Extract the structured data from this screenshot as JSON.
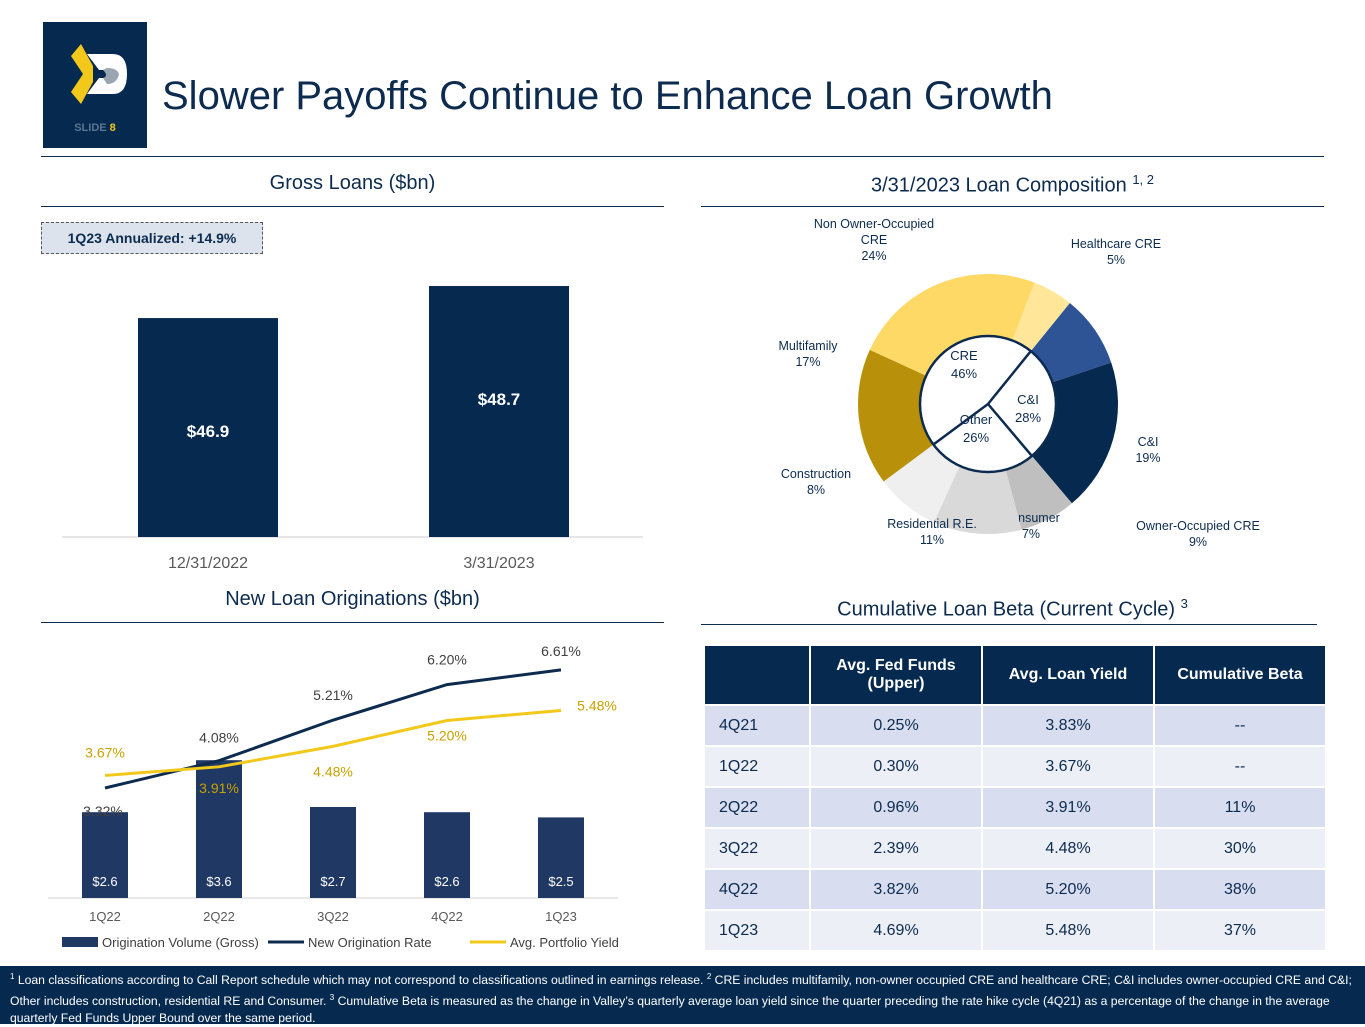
{
  "header": {
    "title": "Slower Payoffs Continue to Enhance Loan Growth",
    "slide_label": "SLIDE",
    "slide_number": "8"
  },
  "colors": {
    "navy": "#062a4f",
    "gold": "#f2c81a",
    "yellow": "#ffd966"
  },
  "gross": {
    "title": "Gross Loans ($bn)",
    "callout": "1Q23 Annualized: +14.9%"
  },
  "composition": {
    "title": "3/31/2023 Loan Composition",
    "sup": "1, 2"
  },
  "originations": {
    "title": "New Loan Originations ($bn)"
  },
  "beta": {
    "title": "Cumulative Loan Beta (Current Cycle)",
    "sup": "3",
    "headers": [
      "",
      "Avg. Fed Funds (Upper)",
      "Avg. Loan Yield",
      "Cumulative Beta"
    ],
    "rows": [
      [
        "4Q21",
        "0.25%",
        "3.83%",
        "--"
      ],
      [
        "1Q22",
        "0.30%",
        "3.67%",
        "--"
      ],
      [
        "2Q22",
        "0.96%",
        "3.91%",
        "11%"
      ],
      [
        "3Q22",
        "2.39%",
        "4.48%",
        "30%"
      ],
      [
        "4Q22",
        "3.82%",
        "5.20%",
        "38%"
      ],
      [
        "1Q23",
        "4.69%",
        "5.48%",
        "37%"
      ]
    ]
  },
  "chart_data": [
    {
      "type": "bar",
      "title": "Gross Loans ($bn)",
      "categories": [
        "12/31/2022",
        "3/31/2023"
      ],
      "values": [
        46.9,
        48.7
      ],
      "labels": [
        "$46.9",
        "$48.7"
      ],
      "ylim": [
        34.6,
        50
      ]
    },
    {
      "type": "pie",
      "title": "3/31/2023 Loan Composition",
      "outer": [
        {
          "name": "Owner-Occupied CRE",
          "value": 9,
          "label": "9%",
          "color": "#2f5496"
        },
        {
          "name": "C&I",
          "value": 19,
          "label": "19%",
          "color": "#062a4f"
        },
        {
          "name": "Consumer",
          "value": 7,
          "label": "7%",
          "color": "#bfbfbf"
        },
        {
          "name": "Residential R.E.",
          "value": 11,
          "label": "11%",
          "color": "#d9d9d9"
        },
        {
          "name": "Construction",
          "value": 8,
          "label": "8%",
          "color": "#efefef"
        },
        {
          "name": "Multifamily",
          "value": 17,
          "label": "17%",
          "color": "#b8900a"
        },
        {
          "name": "Non Owner-Occupied CRE",
          "value": 24,
          "label": "24%",
          "color": "#ffd966"
        },
        {
          "name": "Healthcare CRE",
          "value": 5,
          "label": "5%",
          "color": "#ffe699"
        }
      ],
      "inner": [
        {
          "name": "C&I",
          "value": 28,
          "label": "28%"
        },
        {
          "name": "Other",
          "value": 26,
          "label": "26%"
        },
        {
          "name": "CRE",
          "value": 46,
          "label": "46%"
        }
      ]
    },
    {
      "type": "bar+line",
      "title": "New Loan Originations ($bn)",
      "categories": [
        "1Q22",
        "2Q22",
        "3Q22",
        "4Q22",
        "1Q23"
      ],
      "series": [
        {
          "name": "Origination Volume (Gross)",
          "values": [
            2.6,
            3.6,
            2.7,
            2.6,
            2.5
          ],
          "labels": [
            "$2.6",
            "$3.6",
            "$2.7",
            "$2.6",
            "$2.5"
          ],
          "color": "#1f3864"
        },
        {
          "name": "New Origination Rate",
          "values": [
            3.32,
            4.08,
            5.21,
            6.2,
            6.61
          ],
          "labels": [
            "3.32%",
            "4.08%",
            "5.21%",
            "6.20%",
            "6.61%"
          ],
          "color": "#0c2b4e"
        },
        {
          "name": "Avg. Portfolio Yield",
          "values": [
            3.67,
            3.91,
            4.48,
            5.2,
            5.48
          ],
          "labels": [
            "3.67%",
            "3.91%",
            "4.48%",
            "5.20%",
            "5.48%"
          ],
          "color": "#f2c81a"
        }
      ]
    }
  ],
  "footnote": {
    "n1": "1",
    "t1": " Loan classifications according to Call Report schedule which may not correspond to classifications outlined in earnings release. ",
    "n2": "2",
    "t2": " CRE includes multifamily, non-owner occupied CRE and healthcare CRE; C&I includes owner-occupied CRE and C&I; Other includes construction, residential RE and Consumer.  ",
    "n3": "3",
    "t3": " Cumulative Beta is measured as the change in Valley’s quarterly average loan yield since the quarter preceding the rate hike cycle (4Q21) as a percentage of the change in the average quarterly Fed Funds Upper Bound over the same period."
  }
}
